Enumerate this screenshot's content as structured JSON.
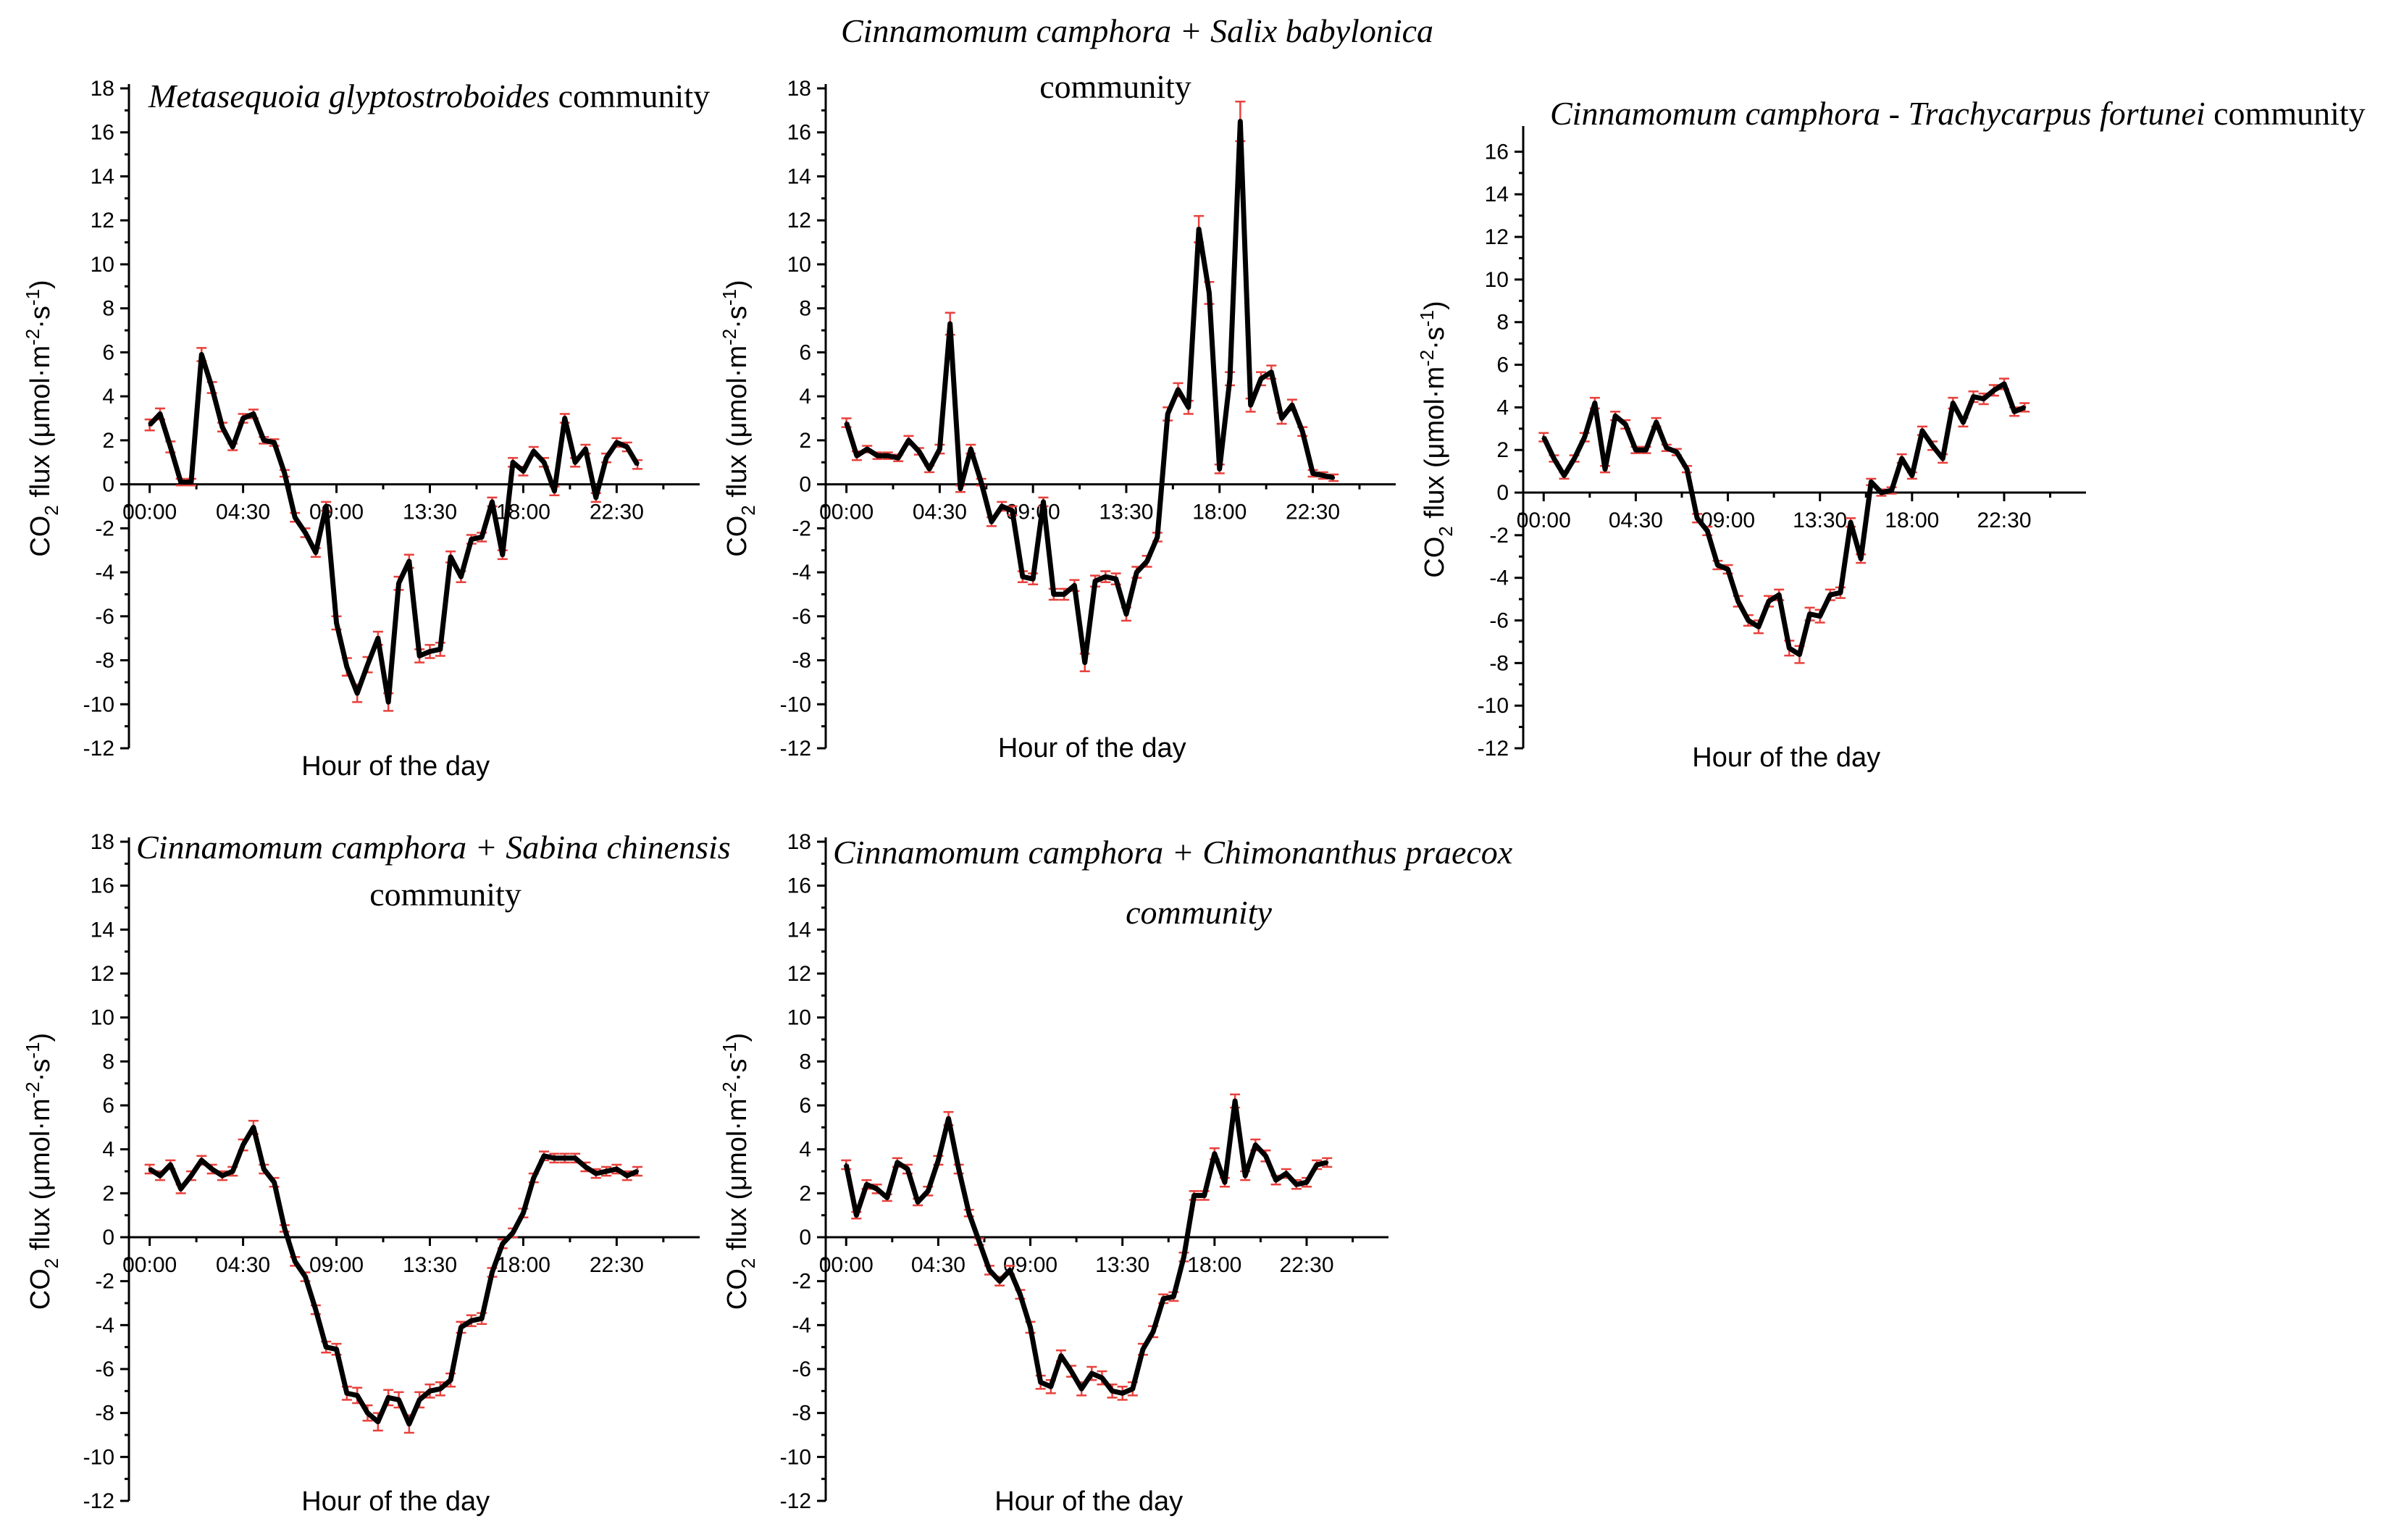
{
  "chart_data": [
    {
      "type": "line",
      "title_parts": [
        {
          "text": "Metasequoia glyptostroboides",
          "italic": true
        },
        {
          "text": " community",
          "italic": false
        }
      ],
      "xlabel": "Hour of the day",
      "ylabel_main": "CO",
      "ylabel_sub": "2",
      "ylabel_rest": " flux (μmol·m",
      "ylabel_sup1": "-2",
      "ylabel_mid": "·s",
      "ylabel_sup2": "-1",
      "ylabel_end": ")",
      "xlim": [
        -1.0,
        26.5
      ],
      "ylim": [
        -12,
        18
      ],
      "yticks": [
        18,
        16,
        14,
        12,
        10,
        8,
        6,
        4,
        2,
        0,
        -2,
        -4,
        -6,
        -8,
        -10,
        -12
      ],
      "xtick_labels": [
        "00:00",
        "04:30",
        "09:00",
        "13:30",
        "18:00",
        "22:30"
      ],
      "xtick_values": [
        0,
        4.5,
        9,
        13.5,
        18,
        22.5
      ],
      "series": [
        {
          "name": "CO2 flux",
          "x": [
            0,
            0.5,
            1,
            1.5,
            2,
            2.5,
            3,
            3.5,
            4,
            4.5,
            5,
            5.5,
            6,
            6.5,
            7,
            7.5,
            8,
            8.5,
            9,
            9.5,
            10,
            10.5,
            11,
            11.5,
            12,
            12.5,
            13,
            13.5,
            14,
            14.5,
            15,
            15.5,
            16,
            16.5,
            17,
            17.5,
            18,
            18.5,
            19,
            19.5,
            20,
            20.5,
            21,
            21.5,
            22,
            22.5,
            23,
            23.5,
            24
          ],
          "y": [
            2.7,
            3.2,
            1.7,
            0.1,
            0.1,
            5.9,
            4.4,
            2.6,
            1.7,
            3.0,
            3.2,
            2.0,
            1.9,
            0.5,
            -1.5,
            -2.2,
            -3.1,
            -1.0,
            -6.3,
            -8.3,
            -9.5,
            -8.2,
            -7.0,
            -9.9,
            -4.5,
            -3.5,
            -7.8,
            -7.6,
            -7.5,
            -3.3,
            -4.2,
            -2.5,
            -2.4,
            -0.8,
            -3.2,
            1.0,
            0.6,
            1.5,
            1.0,
            -0.3,
            3.0,
            1.0,
            1.6,
            -0.6,
            1.2,
            1.9,
            1.7,
            0.9,
            null
          ],
          "err": [
            0.25,
            0.25,
            0.25,
            0.15,
            0.15,
            0.3,
            0.25,
            0.2,
            0.15,
            0.2,
            0.2,
            0.15,
            0.15,
            0.15,
            0.2,
            0.2,
            0.2,
            0.2,
            0.3,
            0.4,
            0.4,
            0.35,
            0.3,
            0.4,
            0.3,
            0.3,
            0.3,
            0.3,
            0.3,
            0.25,
            0.25,
            0.2,
            0.2,
            0.2,
            0.2,
            0.2,
            0.2,
            0.2,
            0.2,
            0.2,
            0.2,
            0.2,
            0.2,
            0.2,
            0.2,
            0.2,
            0.2,
            0.2,
            0
          ]
        }
      ]
    },
    {
      "type": "line",
      "title_parts": [
        {
          "text": "Cinnamomum camphora + Salix babylonica",
          "italic": true
        },
        {
          "text": "community",
          "italic": false,
          "newline": true
        }
      ],
      "xlabel": "Hour of the day",
      "ylabel_main": "CO",
      "ylabel_sub": "2",
      "ylabel_rest": " flux (μmol·m",
      "ylabel_sup1": "-2",
      "ylabel_mid": "·s",
      "ylabel_sup2": "-1",
      "ylabel_end": ")",
      "xlim": [
        -1.0,
        26.5
      ],
      "ylim": [
        -12,
        18
      ],
      "yticks": [
        18,
        16,
        14,
        12,
        10,
        8,
        6,
        4,
        2,
        0,
        -2,
        -4,
        -6,
        -8,
        -10,
        -12
      ],
      "xtick_labels": [
        "00:00",
        "04:30",
        "09:00",
        "13:30",
        "18:00",
        "22:30"
      ],
      "xtick_values": [
        0,
        4.5,
        9,
        13.5,
        18,
        22.5
      ],
      "series": [
        {
          "name": "CO2 flux",
          "x": [
            0,
            0.5,
            1,
            1.5,
            2,
            2.5,
            3,
            3.5,
            4,
            4.5,
            5,
            5.5,
            6,
            6.5,
            7,
            7.5,
            8,
            8.5,
            9,
            9.5,
            10,
            10.5,
            11,
            11.5,
            12,
            12.5,
            13,
            13.5,
            14,
            14.5,
            15,
            15.5,
            16,
            16.5,
            17,
            17.5,
            18,
            18.5,
            19,
            19.5,
            20,
            20.5,
            21,
            21.5,
            22,
            22.5,
            23,
            23.5,
            24
          ],
          "y": [
            2.8,
            1.3,
            1.6,
            1.3,
            1.3,
            1.2,
            2.0,
            1.5,
            0.7,
            1.6,
            7.3,
            -0.2,
            1.6,
            0.1,
            -1.7,
            -1.0,
            -1.2,
            -4.2,
            -4.3,
            -0.8,
            -5.0,
            -5.0,
            -4.6,
            -8.1,
            -4.4,
            -4.2,
            -4.3,
            -5.9,
            -4.0,
            -3.5,
            -2.4,
            3.2,
            4.3,
            3.5,
            11.6,
            8.7,
            0.7,
            4.8,
            16.5,
            3.6,
            4.8,
            5.1,
            3.0,
            3.6,
            2.4,
            0.5,
            0.4,
            0.3,
            null
          ],
          "err": [
            0.2,
            0.2,
            0.15,
            0.15,
            0.15,
            0.15,
            0.2,
            0.15,
            0.15,
            0.2,
            0.5,
            0.15,
            0.2,
            0.15,
            0.2,
            0.2,
            0.2,
            0.25,
            0.25,
            0.2,
            0.25,
            0.25,
            0.25,
            0.4,
            0.25,
            0.25,
            0.25,
            0.3,
            0.25,
            0.25,
            0.2,
            0.3,
            0.3,
            0.3,
            0.6,
            0.5,
            0.2,
            0.3,
            0.9,
            0.3,
            0.3,
            0.3,
            0.25,
            0.25,
            0.2,
            0.15,
            0.15,
            0.15,
            0
          ]
        }
      ]
    },
    {
      "type": "line",
      "title_parts": [
        {
          "text": "Cinnamomum camphora - Trachycarpus fortunei",
          "italic": true
        },
        {
          "text": " community",
          "italic": false
        }
      ],
      "xlabel": "Hour of the day",
      "ylabel_main": "CO",
      "ylabel_sub": "2",
      "ylabel_rest": " flux (μmol·m",
      "ylabel_sup1": "-2",
      "ylabel_mid": "·s",
      "ylabel_sup2": "-1",
      "ylabel_end": ")",
      "xlim": [
        -1.0,
        26.5
      ],
      "ylim": [
        -12,
        17
      ],
      "yticks": [
        16,
        14,
        12,
        10,
        8,
        6,
        4,
        2,
        0,
        -2,
        -4,
        -6,
        -8,
        -10,
        -12
      ],
      "xtick_labels": [
        "00:00",
        "04:30",
        "09:00",
        "13:30",
        "18:00",
        "22:30"
      ],
      "xtick_values": [
        0,
        4.5,
        9,
        13.5,
        18,
        22.5
      ],
      "series": [
        {
          "name": "CO2 flux",
          "x": [
            0,
            0.5,
            1,
            1.5,
            2,
            2.5,
            3,
            3.5,
            4,
            4.5,
            5,
            5.5,
            6,
            6.5,
            7,
            7.5,
            8,
            8.5,
            9,
            9.5,
            10,
            10.5,
            11,
            11.5,
            12,
            12.5,
            13,
            13.5,
            14,
            14.5,
            15,
            15.5,
            16,
            16.5,
            17,
            17.5,
            18,
            18.5,
            19,
            19.5,
            20,
            20.5,
            21,
            21.5,
            22,
            22.5,
            23,
            23.5
          ],
          "y": [
            2.6,
            1.6,
            0.8,
            1.6,
            2.6,
            4.2,
            1.1,
            3.6,
            3.2,
            2.0,
            2.0,
            3.3,
            2.1,
            1.9,
            1.1,
            -1.2,
            -1.8,
            -3.4,
            -3.6,
            -5.1,
            -6.0,
            -6.3,
            -5.1,
            -4.8,
            -7.3,
            -7.6,
            -5.7,
            -5.8,
            -4.8,
            -4.7,
            -1.4,
            -3.1,
            0.5,
            0.0,
            0.1,
            1.6,
            0.8,
            2.9,
            2.2,
            1.6,
            4.2,
            3.3,
            4.5,
            4.4,
            4.8,
            5.1,
            3.8,
            4.0
          ],
          "err": [
            0.2,
            0.15,
            0.15,
            0.15,
            0.2,
            0.25,
            0.15,
            0.2,
            0.2,
            0.15,
            0.15,
            0.2,
            0.15,
            0.15,
            0.15,
            0.2,
            0.2,
            0.2,
            0.2,
            0.25,
            0.25,
            0.3,
            0.25,
            0.25,
            0.35,
            0.4,
            0.3,
            0.3,
            0.25,
            0.25,
            0.2,
            0.2,
            0.15,
            0.15,
            0.15,
            0.2,
            0.15,
            0.2,
            0.2,
            0.2,
            0.25,
            0.2,
            0.25,
            0.25,
            0.25,
            0.25,
            0.2,
            0.2
          ]
        }
      ]
    },
    {
      "type": "line",
      "title_parts": [
        {
          "text": "Cinnamomum camphora + Sabina chinensis",
          "italic": true
        },
        {
          "text": "community",
          "italic": false,
          "newline": true
        }
      ],
      "xlabel": "Hour of the day",
      "ylabel_main": "CO",
      "ylabel_sub": "2",
      "ylabel_rest": " flux (μmol·m",
      "ylabel_sup1": "-2",
      "ylabel_mid": "·s",
      "ylabel_sup2": "-1",
      "ylabel_end": ")",
      "xlim": [
        -1.0,
        26.5
      ],
      "ylim": [
        -12,
        18
      ],
      "yticks": [
        18,
        16,
        14,
        12,
        10,
        8,
        6,
        4,
        2,
        0,
        -2,
        -4,
        -6,
        -8,
        -10,
        -12
      ],
      "xtick_labels": [
        "00:00",
        "04:30",
        "09:00",
        "13:30",
        "18:00",
        "22:30"
      ],
      "xtick_values": [
        0,
        4.5,
        9,
        13.5,
        18,
        22.5
      ],
      "series": [
        {
          "name": "CO2 flux",
          "x": [
            0,
            0.5,
            1,
            1.5,
            2,
            2.5,
            3,
            3.5,
            4,
            4.5,
            5,
            5.5,
            6,
            6.5,
            7,
            7.5,
            8,
            8.5,
            9,
            9.5,
            10,
            10.5,
            11,
            11.5,
            12,
            12.5,
            13,
            13.5,
            14,
            14.5,
            15,
            15.5,
            16,
            16.5,
            17,
            17.5,
            18,
            18.5,
            19,
            19.5,
            20,
            20.5,
            21,
            21.5,
            22,
            22.5,
            23,
            23.5
          ],
          "y": [
            3.1,
            2.8,
            3.3,
            2.2,
            2.8,
            3.5,
            3.1,
            2.8,
            3.0,
            4.2,
            5.0,
            3.1,
            2.5,
            0.4,
            -1.1,
            -1.8,
            -3.3,
            -5.0,
            -5.1,
            -7.1,
            -7.2,
            -8.0,
            -8.4,
            -7.3,
            -7.4,
            -8.5,
            -7.4,
            -7.0,
            -6.9,
            -6.5,
            -4.1,
            -3.8,
            -3.7,
            -1.6,
            -0.3,
            0.2,
            1.1,
            2.7,
            3.7,
            3.6,
            3.6,
            3.6,
            3.2,
            2.9,
            3.0,
            3.1,
            2.8,
            3.0
          ],
          "err": [
            0.2,
            0.2,
            0.2,
            0.2,
            0.2,
            0.2,
            0.2,
            0.2,
            0.2,
            0.25,
            0.3,
            0.2,
            0.2,
            0.15,
            0.2,
            0.2,
            0.2,
            0.25,
            0.25,
            0.3,
            0.35,
            0.35,
            0.4,
            0.35,
            0.35,
            0.4,
            0.35,
            0.3,
            0.3,
            0.3,
            0.25,
            0.25,
            0.25,
            0.2,
            0.2,
            0.2,
            0.2,
            0.2,
            0.2,
            0.2,
            0.2,
            0.2,
            0.2,
            0.2,
            0.2,
            0.2,
            0.2,
            0.2
          ]
        }
      ]
    },
    {
      "type": "line",
      "title_parts": [
        {
          "text": "Cinnamomum camphora + Chimonanthus praecox",
          "italic": true
        },
        {
          "text": "community",
          "italic": true,
          "newline": true
        }
      ],
      "xlabel": "Hour of the day",
      "ylabel_main": "CO",
      "ylabel_sub": "2",
      "ylabel_rest": " flux (μmol·m",
      "ylabel_sup1": "-2",
      "ylabel_mid": "·s",
      "ylabel_sup2": "-1",
      "ylabel_end": ")",
      "xlim": [
        -1.0,
        26.5
      ],
      "ylim": [
        -12,
        18
      ],
      "yticks": [
        18,
        16,
        14,
        12,
        10,
        8,
        6,
        4,
        2,
        0,
        -2,
        -4,
        -6,
        -8,
        -10,
        -12
      ],
      "xtick_labels": [
        "00:00",
        "04:30",
        "09:00",
        "13:30",
        "18:00",
        "22:30"
      ],
      "xtick_values": [
        0,
        4.5,
        9,
        13.5,
        18,
        22.5
      ],
      "series": [
        {
          "name": "CO2 flux",
          "x": [
            0,
            0.5,
            1,
            1.5,
            2,
            2.5,
            3,
            3.5,
            4,
            4.5,
            5,
            5.5,
            6,
            6.5,
            7,
            7.5,
            8,
            8.5,
            9,
            9.5,
            10,
            10.5,
            11,
            11.5,
            12,
            12.5,
            13,
            13.5,
            14,
            14.5,
            15,
            15.5,
            16,
            16.5,
            17,
            17.5,
            18,
            18.5,
            19,
            19.5,
            20,
            20.5,
            21,
            21.5,
            22,
            22.5,
            23,
            23.5
          ],
          "y": [
            3.3,
            1.0,
            2.4,
            2.2,
            1.8,
            3.4,
            3.1,
            1.6,
            2.1,
            3.5,
            5.4,
            3.1,
            1.1,
            -0.2,
            -1.5,
            -2.0,
            -1.5,
            -2.6,
            -4.1,
            -6.6,
            -6.8,
            -5.4,
            -6.1,
            -6.9,
            -6.2,
            -6.4,
            -7.0,
            -7.1,
            -6.9,
            -5.1,
            -4.3,
            -2.8,
            -2.7,
            -0.9,
            1.9,
            1.9,
            3.8,
            2.5,
            6.2,
            2.8,
            4.2,
            3.7,
            2.6,
            2.9,
            2.4,
            2.5,
            3.3,
            3.4
          ],
          "err": [
            0.2,
            0.15,
            0.2,
            0.2,
            0.15,
            0.2,
            0.2,
            0.15,
            0.2,
            0.2,
            0.3,
            0.2,
            0.15,
            0.15,
            0.2,
            0.2,
            0.2,
            0.2,
            0.25,
            0.3,
            0.3,
            0.25,
            0.25,
            0.3,
            0.3,
            0.3,
            0.3,
            0.3,
            0.3,
            0.25,
            0.25,
            0.2,
            0.2,
            0.2,
            0.2,
            0.2,
            0.25,
            0.2,
            0.3,
            0.2,
            0.25,
            0.25,
            0.2,
            0.2,
            0.2,
            0.2,
            0.2,
            0.2
          ]
        }
      ]
    }
  ],
  "colors": {
    "line": "#000000",
    "error_bar": "#e8413c",
    "axis": "#000000"
  }
}
